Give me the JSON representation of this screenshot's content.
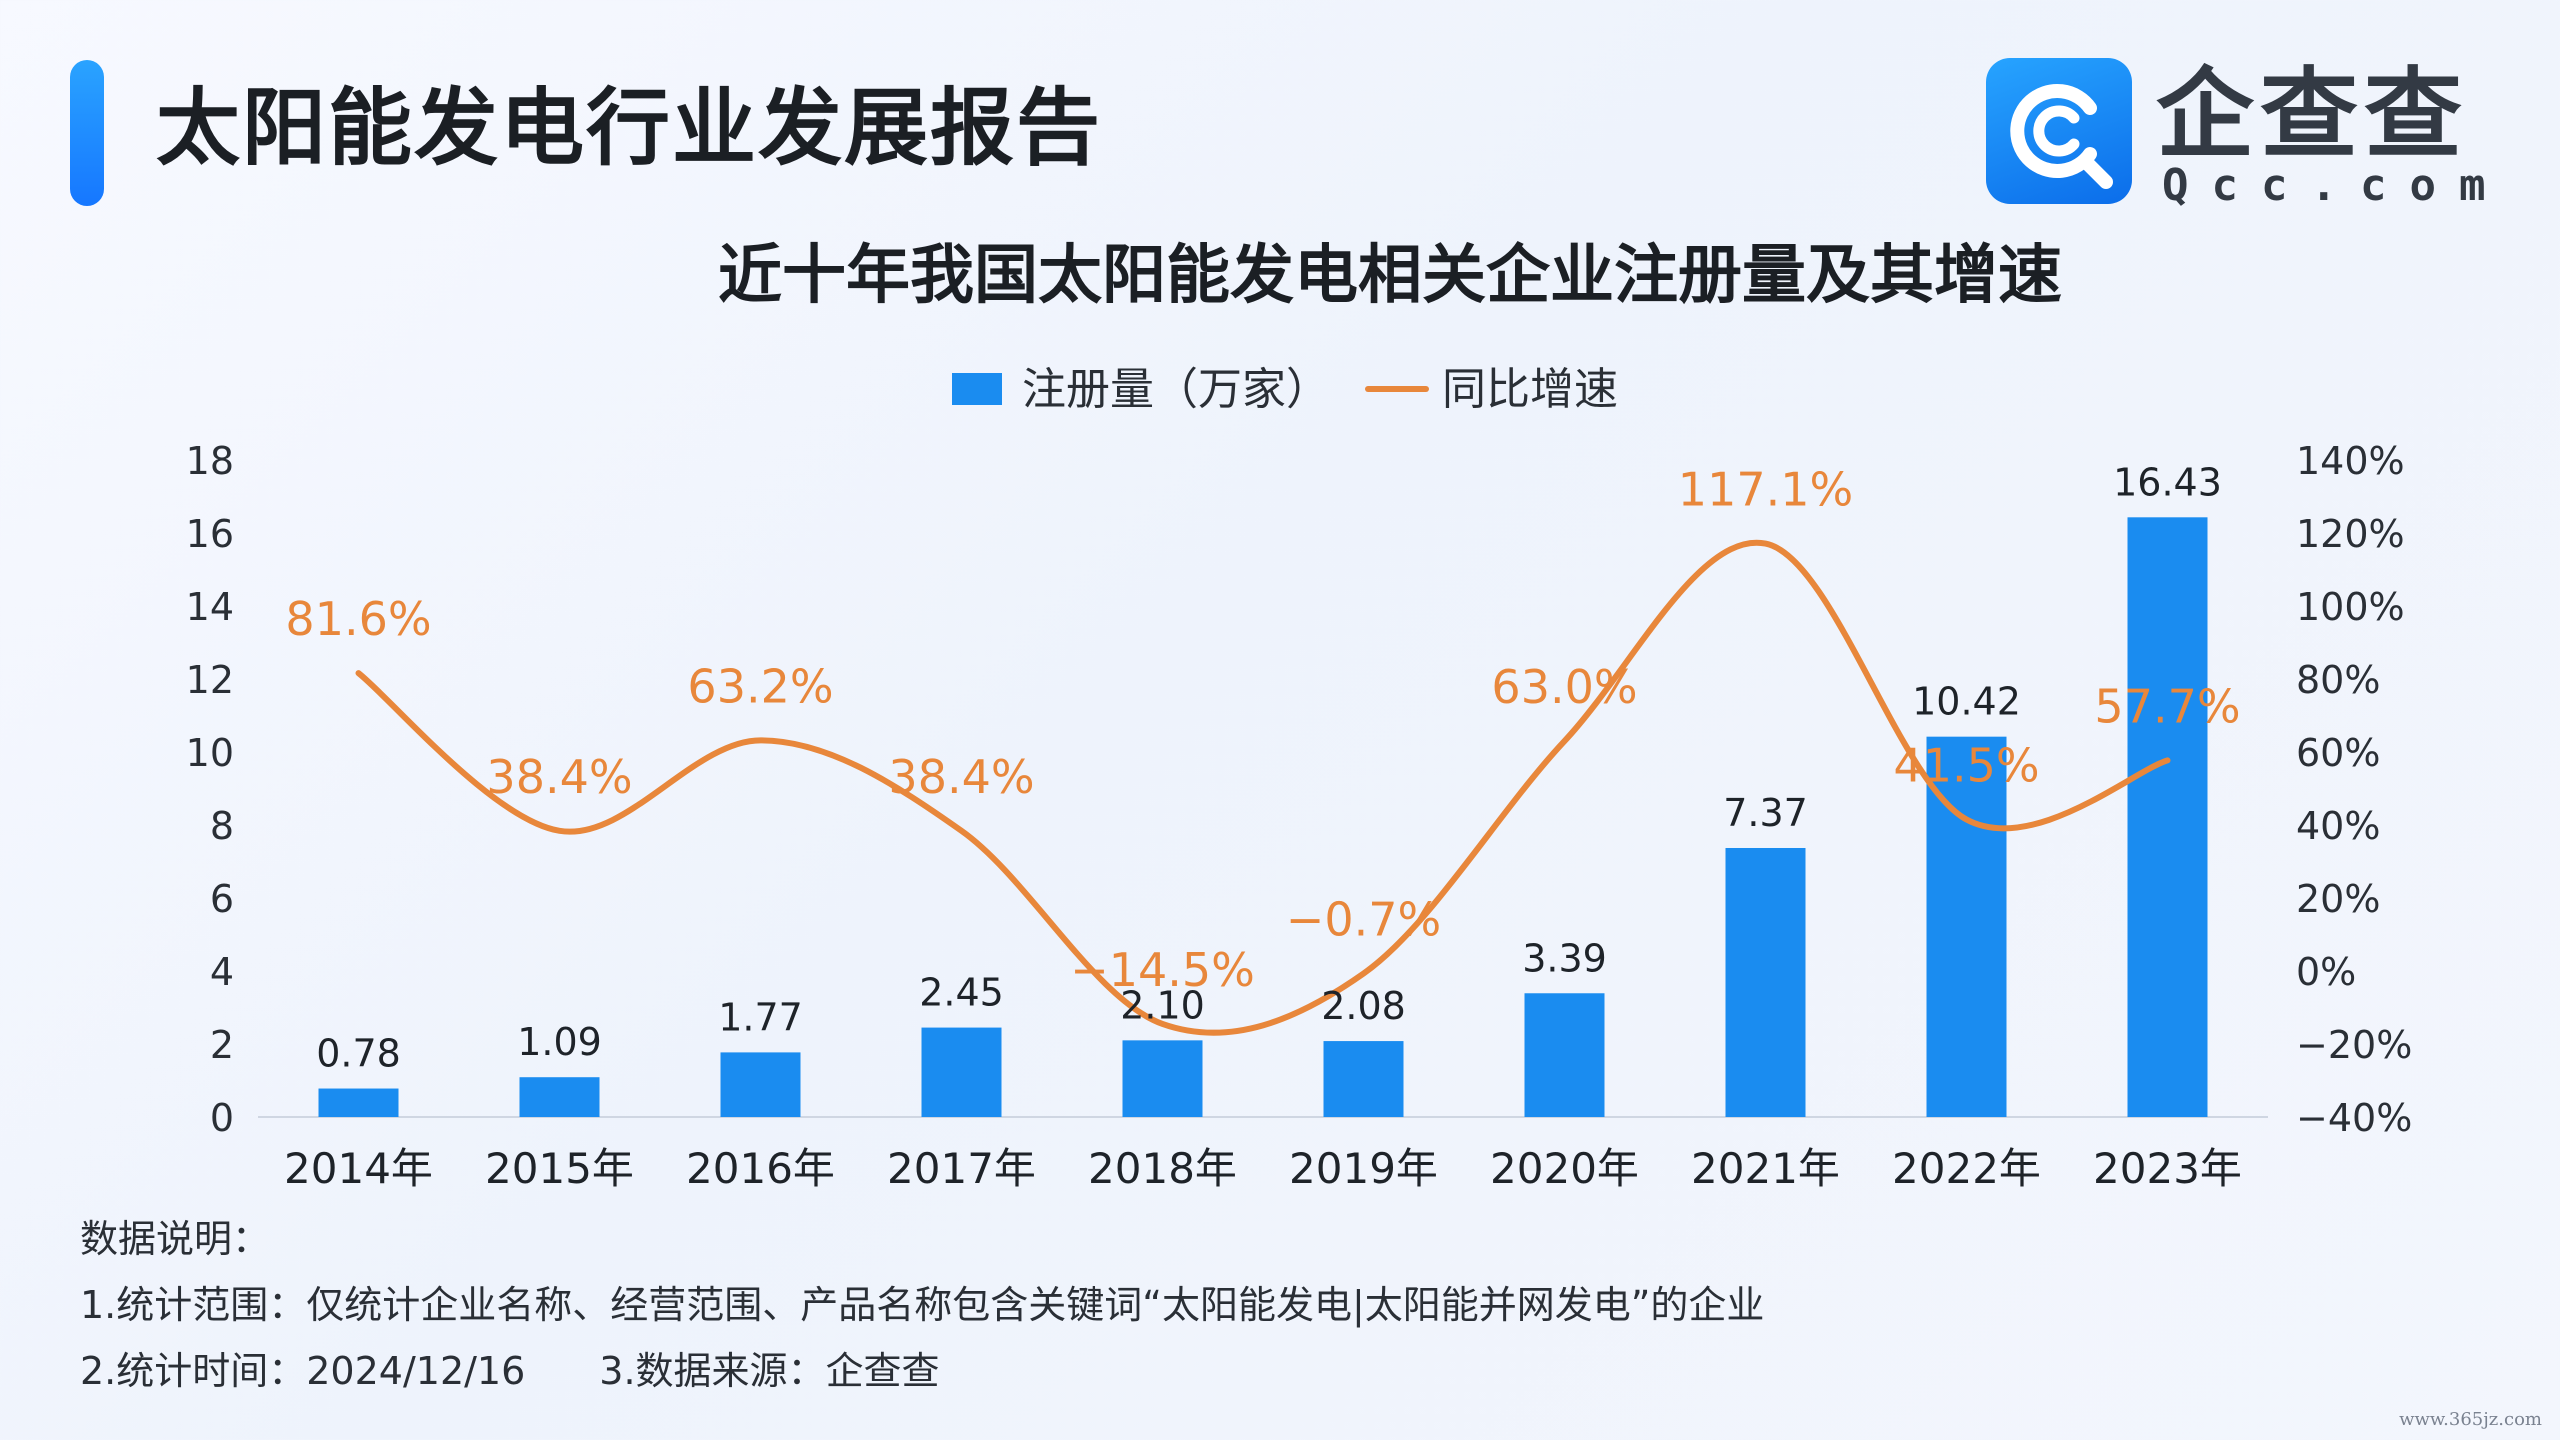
{
  "header": {
    "title": "太阳能发电行业发展报告",
    "logo_cn": "企查查",
    "logo_en": "Qcc.com"
  },
  "colors": {
    "bar": "#1a8cf0",
    "line": "#e8873b",
    "accent": "#1677ff"
  },
  "chart_data": {
    "type": "bar",
    "title": "近十年我国太阳能发电相关企业注册量及其增速",
    "categories": [
      "2014年",
      "2015年",
      "2016年",
      "2017年",
      "2018年",
      "2019年",
      "2020年",
      "2021年",
      "2022年",
      "2023年"
    ],
    "series": [
      {
        "name": "注册量（万家）",
        "type": "bar",
        "axis": "left",
        "values": [
          0.78,
          1.09,
          1.77,
          2.45,
          2.1,
          2.08,
          3.39,
          7.37,
          10.42,
          16.43
        ],
        "labels": [
          "0.78",
          "1.09",
          "1.77",
          "2.45",
          "2.10",
          "2.08",
          "3.39",
          "7.37",
          "10.42",
          "16.43"
        ]
      },
      {
        "name": "同比增速",
        "type": "line",
        "axis": "right",
        "values": [
          81.6,
          38.4,
          63.2,
          38.4,
          -14.5,
          -0.7,
          63.0,
          117.1,
          41.5,
          57.7
        ],
        "labels": [
          "81.6%",
          "38.4%",
          "63.2%",
          "38.4%",
          "−14.5%",
          "−0.7%",
          "63.0%",
          "117.1%",
          "41.5%",
          "57.7%"
        ]
      }
    ],
    "y_left": {
      "min": 0,
      "max": 18,
      "ticks": [
        "0",
        "2",
        "4",
        "6",
        "8",
        "10",
        "12",
        "14",
        "16",
        "18"
      ]
    },
    "y_right": {
      "min": -40,
      "max": 140,
      "ticks": [
        "−40%",
        "−20%",
        "0%",
        "20%",
        "40%",
        "60%",
        "80%",
        "100%",
        "120%",
        "140%"
      ]
    },
    "legend": {
      "position": "top",
      "items": [
        "注册量（万家）",
        "同比增速"
      ]
    },
    "grid": false
  },
  "notes": {
    "heading": "数据说明：",
    "scope": "1.统计范围：仅统计企业名称、经营范围、产品名称包含关键词“太阳能发电|太阳能并网发电”的企业",
    "time": "2.统计时间：2024/12/16",
    "source": "3.数据来源：企查查"
  },
  "watermark": "www.365jz.com"
}
